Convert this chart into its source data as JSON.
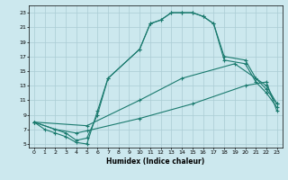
{
  "xlabel": "Humidex (Indice chaleur)",
  "bg_color": "#cce8ee",
  "grid_color": "#aaccd4",
  "line_color": "#1a7a6e",
  "line1": {
    "x": [
      0,
      1,
      2,
      3,
      4,
      5,
      6,
      7,
      10,
      11,
      12,
      13,
      14,
      15,
      16,
      17,
      18,
      20,
      21,
      22,
      23
    ],
    "y": [
      8,
      7,
      6.5,
      6.0,
      5.2,
      5.0,
      9.5,
      14,
      18,
      21.5,
      22,
      23,
      23,
      23,
      22.5,
      21.5,
      16.5,
      16,
      13.5,
      12,
      10
    ]
  },
  "line2": {
    "x": [
      0,
      3,
      4,
      5,
      6,
      7,
      10,
      11,
      12,
      13,
      14,
      15,
      16,
      17,
      18,
      20,
      21,
      22,
      23
    ],
    "y": [
      8,
      6.5,
      5.5,
      5.8,
      9.0,
      14,
      18,
      21.5,
      22,
      23,
      23,
      23,
      22.5,
      21.5,
      17,
      16.5,
      14,
      12.5,
      10.5
    ]
  },
  "line3": {
    "x": [
      0,
      5,
      10,
      14,
      19,
      21,
      22,
      23
    ],
    "y": [
      8,
      7.5,
      11,
      14,
      16,
      14,
      13,
      10.5
    ]
  },
  "line4": {
    "x": [
      0,
      2,
      4,
      5,
      10,
      15,
      20,
      22,
      23
    ],
    "y": [
      8,
      7,
      6.5,
      6.8,
      8.5,
      10.5,
      13,
      13.5,
      9.5
    ]
  },
  "xlim": [
    -0.5,
    23.5
  ],
  "ylim": [
    4.5,
    24.0
  ],
  "xticks": [
    0,
    1,
    2,
    3,
    4,
    5,
    6,
    7,
    8,
    9,
    10,
    11,
    12,
    13,
    14,
    15,
    16,
    17,
    18,
    19,
    20,
    21,
    22,
    23
  ],
  "yticks": [
    5,
    7,
    9,
    11,
    13,
    15,
    17,
    19,
    21,
    23
  ]
}
